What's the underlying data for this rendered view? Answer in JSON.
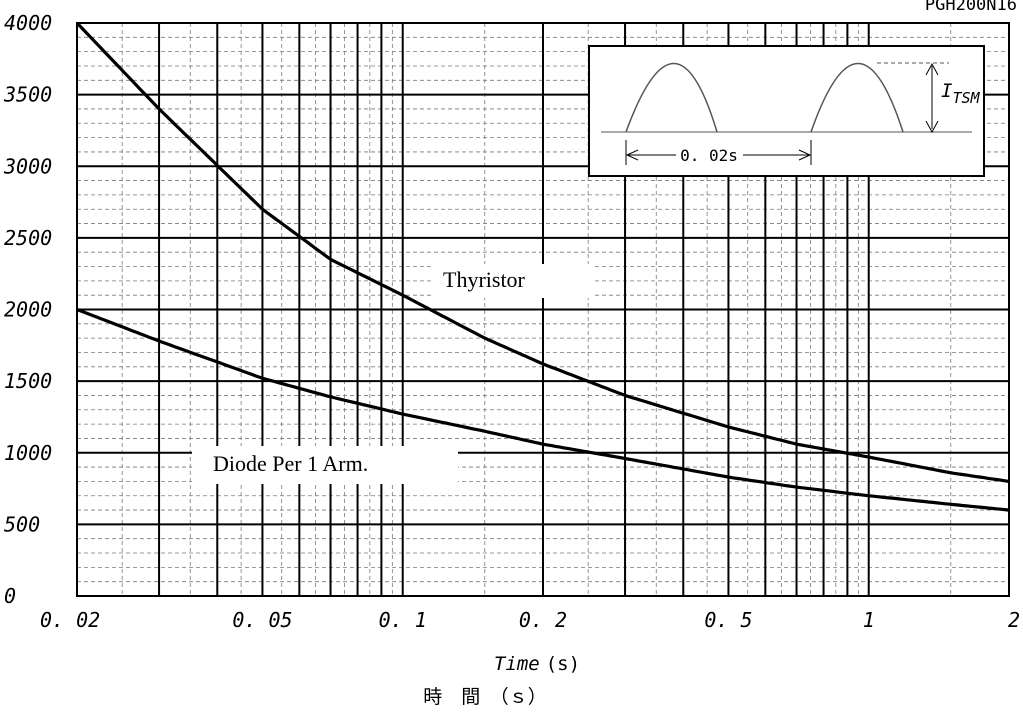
{
  "chart_data": {
    "type": "line",
    "model_label": "PGH200N16",
    "xlabel": {
      "italic": "Time",
      "unit": "(s)"
    },
    "xlabel_jp": "時　間　（ｓ）",
    "ylabel": "",
    "x_scale": "log",
    "xlim": [
      0.02,
      2
    ],
    "ylim": [
      0,
      4000
    ],
    "x_ticks": [
      0.02,
      0.05,
      0.1,
      0.2,
      0.5,
      1,
      2
    ],
    "x_tick_labels": [
      "0. 02",
      "0. 05",
      "0. 1",
      "0. 2",
      "0. 5",
      "1",
      "2"
    ],
    "y_ticks": [
      0,
      500,
      1000,
      1500,
      2000,
      2500,
      3000,
      3500,
      4000
    ],
    "y_tick_labels": [
      "0",
      "500",
      "1000",
      "1500",
      "2000",
      "2500",
      "3000",
      "3500",
      "4000"
    ],
    "grid": true,
    "series": [
      {
        "name": "Thyristor",
        "x": [
          0.02,
          0.03,
          0.05,
          0.07,
          0.1,
          0.15,
          0.2,
          0.3,
          0.5,
          0.7,
          1,
          1.5,
          2
        ],
        "y": [
          4000,
          3400,
          2700,
          2350,
          2100,
          1800,
          1620,
          1400,
          1180,
          1060,
          970,
          860,
          800
        ]
      },
      {
        "name": "Diode Per 1 Arm.",
        "x": [
          0.02,
          0.03,
          0.05,
          0.07,
          0.1,
          0.15,
          0.2,
          0.3,
          0.5,
          0.7,
          1,
          1.5,
          2
        ],
        "y": [
          2000,
          1780,
          1520,
          1390,
          1270,
          1150,
          1060,
          960,
          830,
          760,
          700,
          640,
          600
        ]
      }
    ],
    "inset": {
      "label_main": "I",
      "label_sub": "TSM",
      "period_label": "0. 02s"
    }
  }
}
